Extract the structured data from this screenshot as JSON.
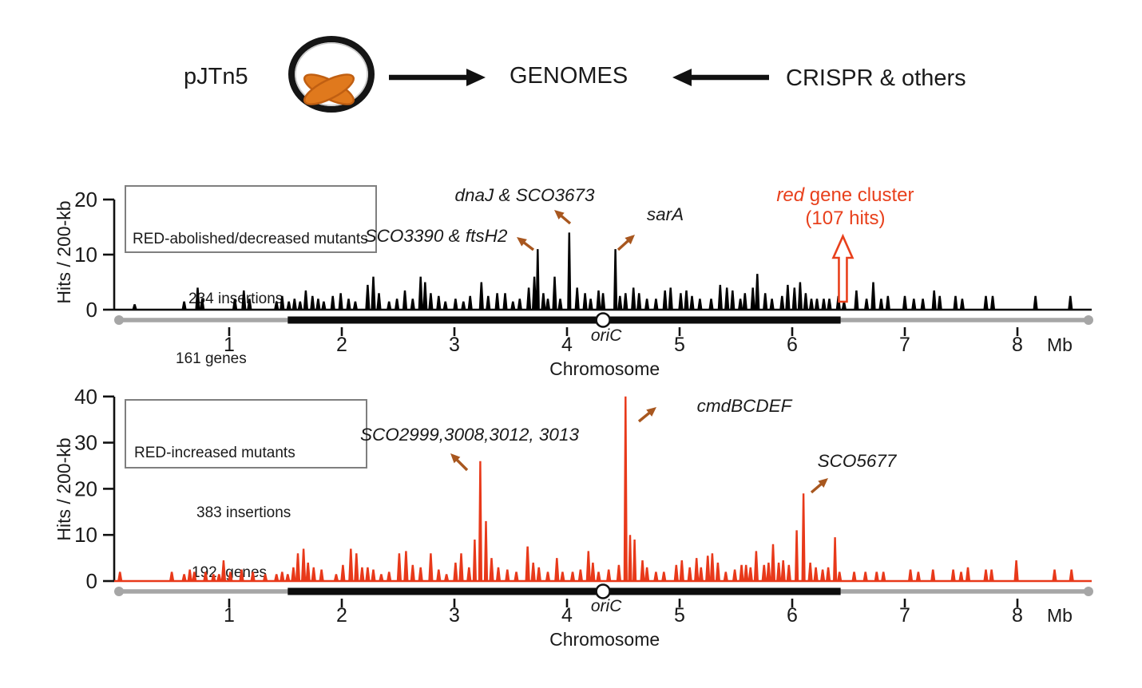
{
  "header": {
    "plasmid_label": "pJTn5",
    "target_label": "GENOMES",
    "other_label": "CRISPR & others",
    "plasmid_ring_color": "#151515",
    "plasmid_insert_color": "#e0791d",
    "plasmid_insert_stroke": "#c05f12",
    "arrow_color": "#111111"
  },
  "style_colors": {
    "top_trace": "#000000",
    "bottom_trace": "#e8391a",
    "red_text": "#e8401c",
    "annotation_arrow": "#a8571f",
    "axis_gray": "#a6a6a6",
    "chromosome_black": "#0d0d0d"
  },
  "chart_data": [
    {
      "type": "bar",
      "panel": "top",
      "legend_lines": [
        "RED-abolished/decreased mutants",
        "234 insertions",
        "161 genes"
      ],
      "ylabel": "Hits / 200-kb",
      "xlabel": "Chromosome",
      "x_unit": "Mb",
      "ylim": [
        0,
        20
      ],
      "yticks": [
        0,
        10,
        20
      ],
      "xticks": [
        1,
        2,
        3,
        4,
        5,
        6,
        7,
        8
      ],
      "xlim": [
        0,
        8.65
      ],
      "grid": false,
      "trace_color": "#000000",
      "oric": {
        "label": "oriC",
        "x_mb": 4.32
      },
      "chromosome_core_mb": [
        1.52,
        6.43
      ],
      "annotations": [
        {
          "label": "SCO3390 & ftsH2",
          "x_mb": 3.74,
          "value": 11
        },
        {
          "label": "dnaJ & SCO3673",
          "x_mb": 4.02,
          "value": 14
        },
        {
          "label": "sarA",
          "x_mb": 4.43,
          "value": 11
        }
      ],
      "red_annotation": {
        "italic_word": "red",
        "rest": " gene cluster",
        "line2": "(107 hits)",
        "hits": 107,
        "x_mb": 6.45
      },
      "points": [
        [
          0.16,
          1
        ],
        [
          0.6,
          1.5
        ],
        [
          0.72,
          4
        ],
        [
          0.76,
          2
        ],
        [
          1.05,
          2
        ],
        [
          1.13,
          3.5
        ],
        [
          1.18,
          2
        ],
        [
          1.42,
          1.5
        ],
        [
          1.47,
          2.5
        ],
        [
          1.53,
          1.5
        ],
        [
          1.58,
          2
        ],
        [
          1.63,
          1.5
        ],
        [
          1.68,
          3.5
        ],
        [
          1.74,
          2.5
        ],
        [
          1.79,
          2
        ],
        [
          1.84,
          1.5
        ],
        [
          1.92,
          2.5
        ],
        [
          1.99,
          3
        ],
        [
          2.06,
          2
        ],
        [
          2.12,
          1.5
        ],
        [
          2.23,
          4.5
        ],
        [
          2.28,
          6
        ],
        [
          2.33,
          3
        ],
        [
          2.42,
          1.5
        ],
        [
          2.49,
          2
        ],
        [
          2.56,
          3.5
        ],
        [
          2.63,
          2
        ],
        [
          2.7,
          6
        ],
        [
          2.74,
          5
        ],
        [
          2.79,
          3
        ],
        [
          2.86,
          2.5
        ],
        [
          2.92,
          1.5
        ],
        [
          3.01,
          2
        ],
        [
          3.08,
          1.5
        ],
        [
          3.14,
          2.5
        ],
        [
          3.24,
          5
        ],
        [
          3.3,
          2.5
        ],
        [
          3.38,
          3
        ],
        [
          3.45,
          3
        ],
        [
          3.52,
          1.5
        ],
        [
          3.58,
          2
        ],
        [
          3.66,
          4
        ],
        [
          3.71,
          6
        ],
        [
          3.74,
          11
        ],
        [
          3.79,
          3
        ],
        [
          3.83,
          2
        ],
        [
          3.89,
          6
        ],
        [
          3.94,
          2
        ],
        [
          4.02,
          14
        ],
        [
          4.09,
          4
        ],
        [
          4.16,
          3
        ],
        [
          4.21,
          2
        ],
        [
          4.28,
          3.5
        ],
        [
          4.32,
          3
        ],
        [
          4.43,
          11
        ],
        [
          4.47,
          2.5
        ],
        [
          4.52,
          3
        ],
        [
          4.59,
          4
        ],
        [
          4.64,
          3
        ],
        [
          4.71,
          2
        ],
        [
          4.79,
          2
        ],
        [
          4.87,
          3.5
        ],
        [
          4.92,
          4
        ],
        [
          5.01,
          3
        ],
        [
          5.06,
          3.5
        ],
        [
          5.11,
          2.5
        ],
        [
          5.18,
          2
        ],
        [
          5.28,
          2
        ],
        [
          5.36,
          4.5
        ],
        [
          5.42,
          4
        ],
        [
          5.47,
          3.5
        ],
        [
          5.54,
          2
        ],
        [
          5.58,
          3
        ],
        [
          5.65,
          4
        ],
        [
          5.69,
          6.5
        ],
        [
          5.76,
          3
        ],
        [
          5.82,
          2
        ],
        [
          5.91,
          2.5
        ],
        [
          5.96,
          4.5
        ],
        [
          6.02,
          4
        ],
        [
          6.07,
          5
        ],
        [
          6.12,
          3
        ],
        [
          6.17,
          2
        ],
        [
          6.22,
          2
        ],
        [
          6.28,
          2
        ],
        [
          6.33,
          2
        ],
        [
          6.41,
          2.5
        ],
        [
          6.46,
          1.5
        ],
        [
          6.57,
          3.5
        ],
        [
          6.66,
          2
        ],
        [
          6.72,
          5
        ],
        [
          6.79,
          2
        ],
        [
          6.85,
          2.5
        ],
        [
          7.0,
          2.5
        ],
        [
          7.08,
          2
        ],
        [
          7.16,
          2
        ],
        [
          7.26,
          3.5
        ],
        [
          7.31,
          2.5
        ],
        [
          7.45,
          2.5
        ],
        [
          7.51,
          2
        ],
        [
          7.72,
          2.5
        ],
        [
          7.78,
          2.5
        ],
        [
          8.16,
          2.5
        ],
        [
          8.47,
          2.5
        ]
      ]
    },
    {
      "type": "bar",
      "panel": "bottom",
      "legend_lines": [
        "RED-increased mutants",
        "383 insertions",
        "192  genes"
      ],
      "ylabel": "Hits / 200-kb",
      "xlabel": "Chromosome",
      "x_unit": "Mb",
      "ylim": [
        0,
        40
      ],
      "yticks": [
        0,
        10,
        20,
        30,
        40
      ],
      "xticks": [
        1,
        2,
        3,
        4,
        5,
        6,
        7,
        8
      ],
      "xlim": [
        0,
        8.65
      ],
      "grid": false,
      "trace_color": "#e8391a",
      "oric": {
        "label": "oriC",
        "x_mb": 4.32
      },
      "chromosome_core_mb": [
        1.52,
        6.43
      ],
      "annotations": [
        {
          "label": "SCO2999,3008,3012, 3013",
          "x_mb": 3.23,
          "value": 26
        },
        {
          "label": "cmdBCDEF",
          "x_mb": 4.52,
          "value": 40
        },
        {
          "label": "SCO5677",
          "x_mb": 6.1,
          "value": 19
        }
      ],
      "points": [
        [
          0.03,
          2
        ],
        [
          0.49,
          2
        ],
        [
          0.6,
          1.5
        ],
        [
          0.65,
          2.5
        ],
        [
          0.69,
          2
        ],
        [
          0.79,
          2
        ],
        [
          0.86,
          1.5
        ],
        [
          0.91,
          1.5
        ],
        [
          0.95,
          4.5
        ],
        [
          1.01,
          2
        ],
        [
          1.11,
          2.5
        ],
        [
          1.21,
          2
        ],
        [
          1.32,
          1.5
        ],
        [
          1.42,
          1.5
        ],
        [
          1.47,
          2
        ],
        [
          1.52,
          1.5
        ],
        [
          1.57,
          3
        ],
        [
          1.61,
          6
        ],
        [
          1.66,
          7
        ],
        [
          1.7,
          4
        ],
        [
          1.75,
          3
        ],
        [
          1.82,
          2.5
        ],
        [
          1.95,
          1.5
        ],
        [
          2.01,
          3.5
        ],
        [
          2.08,
          7
        ],
        [
          2.13,
          6
        ],
        [
          2.18,
          3
        ],
        [
          2.23,
          3
        ],
        [
          2.28,
          2.5
        ],
        [
          2.35,
          1.5
        ],
        [
          2.42,
          2
        ],
        [
          2.51,
          6
        ],
        [
          2.57,
          6.5
        ],
        [
          2.63,
          3.5
        ],
        [
          2.7,
          3
        ],
        [
          2.79,
          6
        ],
        [
          2.86,
          2.5
        ],
        [
          2.93,
          1.5
        ],
        [
          3.01,
          4
        ],
        [
          3.06,
          6
        ],
        [
          3.13,
          3
        ],
        [
          3.18,
          9
        ],
        [
          3.23,
          26
        ],
        [
          3.28,
          13
        ],
        [
          3.33,
          5
        ],
        [
          3.39,
          3
        ],
        [
          3.47,
          2.5
        ],
        [
          3.55,
          2
        ],
        [
          3.65,
          7.5
        ],
        [
          3.7,
          4
        ],
        [
          3.75,
          3
        ],
        [
          3.83,
          2
        ],
        [
          3.91,
          5
        ],
        [
          3.96,
          2
        ],
        [
          4.05,
          2
        ],
        [
          4.12,
          2.5
        ],
        [
          4.19,
          6.5
        ],
        [
          4.23,
          4
        ],
        [
          4.28,
          2
        ],
        [
          4.37,
          2.5
        ],
        [
          4.46,
          3.5
        ],
        [
          4.52,
          40
        ],
        [
          4.56,
          10
        ],
        [
          4.6,
          9
        ],
        [
          4.67,
          4.5
        ],
        [
          4.71,
          3
        ],
        [
          4.79,
          2
        ],
        [
          4.86,
          2
        ],
        [
          4.97,
          3.5
        ],
        [
          5.02,
          4.5
        ],
        [
          5.09,
          3
        ],
        [
          5.15,
          5
        ],
        [
          5.19,
          3
        ],
        [
          5.25,
          5.5
        ],
        [
          5.29,
          6
        ],
        [
          5.34,
          4
        ],
        [
          5.41,
          2
        ],
        [
          5.49,
          2.5
        ],
        [
          5.55,
          3.5
        ],
        [
          5.59,
          3.5
        ],
        [
          5.63,
          3
        ],
        [
          5.68,
          6.5
        ],
        [
          5.75,
          3.5
        ],
        [
          5.79,
          4
        ],
        [
          5.83,
          8
        ],
        [
          5.88,
          4
        ],
        [
          5.92,
          4.5
        ],
        [
          5.97,
          3.5
        ],
        [
          6.04,
          11
        ],
        [
          6.1,
          19
        ],
        [
          6.16,
          4
        ],
        [
          6.21,
          3
        ],
        [
          6.27,
          2.5
        ],
        [
          6.32,
          3
        ],
        [
          6.38,
          9.5
        ],
        [
          6.42,
          2
        ],
        [
          6.55,
          2
        ],
        [
          6.65,
          2
        ],
        [
          6.75,
          2
        ],
        [
          6.81,
          2
        ],
        [
          7.05,
          2.5
        ],
        [
          7.12,
          2
        ],
        [
          7.25,
          2.5
        ],
        [
          7.43,
          2.5
        ],
        [
          7.5,
          2
        ],
        [
          7.56,
          3
        ],
        [
          7.72,
          2.5
        ],
        [
          7.77,
          2.5
        ],
        [
          7.99,
          4.5
        ],
        [
          8.33,
          2.5
        ],
        [
          8.48,
          2.5
        ]
      ]
    }
  ]
}
